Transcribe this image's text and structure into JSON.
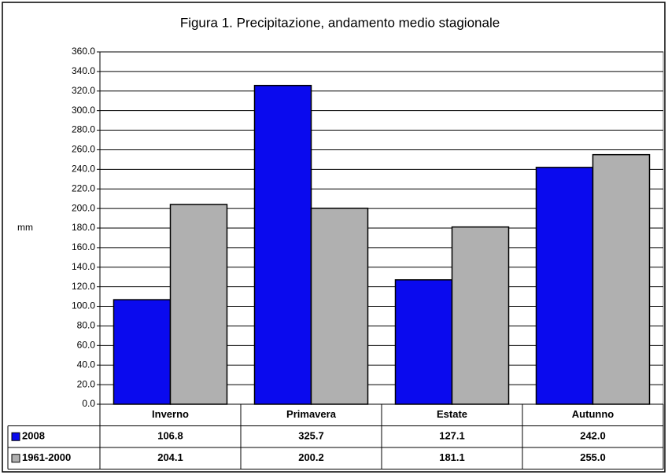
{
  "chart_data": {
    "type": "bar",
    "title": "Figura 1. Precipitazione, andamento medio stagionale",
    "y_label": "mm",
    "categories": [
      "Inverno",
      "Primavera",
      "Estate",
      "Autunno"
    ],
    "series": [
      {
        "name": "2008",
        "color": "#0a0aee",
        "values": [
          106.8,
          325.7,
          127.1,
          242.0
        ],
        "value_labels": [
          "106.8",
          "325.7",
          "127.1",
          "242.0"
        ]
      },
      {
        "name": "1961-2000",
        "color": "#b0b0b0",
        "values": [
          204.1,
          200.2,
          181.1,
          255.0
        ],
        "value_labels": [
          "204.1",
          "200.2",
          "181.1",
          "255.0"
        ]
      }
    ],
    "ylim": [
      0,
      360
    ],
    "yticks": [
      {
        "value": 0,
        "label": "0.0"
      },
      {
        "value": 20,
        "label": "20.0"
      },
      {
        "value": 40,
        "label": "40.0"
      },
      {
        "value": 60,
        "label": "60.0"
      },
      {
        "value": 80,
        "label": "80.0"
      },
      {
        "value": 100,
        "label": "100.0"
      },
      {
        "value": 120,
        "label": "120.0"
      },
      {
        "value": 140,
        "label": "140.0"
      },
      {
        "value": 160,
        "label": "160.0"
      },
      {
        "value": 180,
        "label": "180.0"
      },
      {
        "value": 200,
        "label": "200.0"
      },
      {
        "value": 220,
        "label": "220.0"
      },
      {
        "value": 240,
        "label": "240.0"
      },
      {
        "value": 260,
        "label": "260.0"
      },
      {
        "value": 280,
        "label": "280.0"
      },
      {
        "value": 300,
        "label": "300.0"
      },
      {
        "value": 320,
        "label": "320.0"
      },
      {
        "value": 340,
        "label": "340.0"
      },
      {
        "value": 360,
        "label": "360.0"
      }
    ],
    "grid": true
  }
}
